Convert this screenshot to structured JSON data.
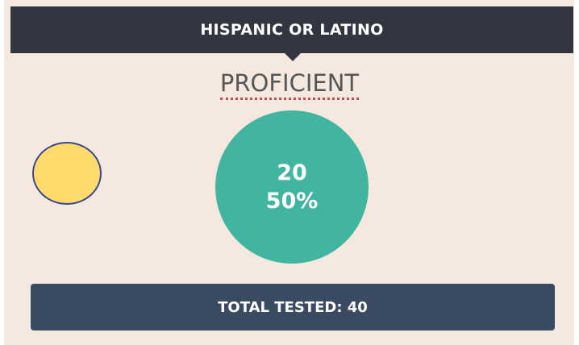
{
  "header": {
    "title": "HISPANIC OR LATINO"
  },
  "status": {
    "label": "PROFICIENT",
    "count": "20",
    "percent": "50%"
  },
  "footer": {
    "total": "TOTAL TESTED: 40"
  }
}
